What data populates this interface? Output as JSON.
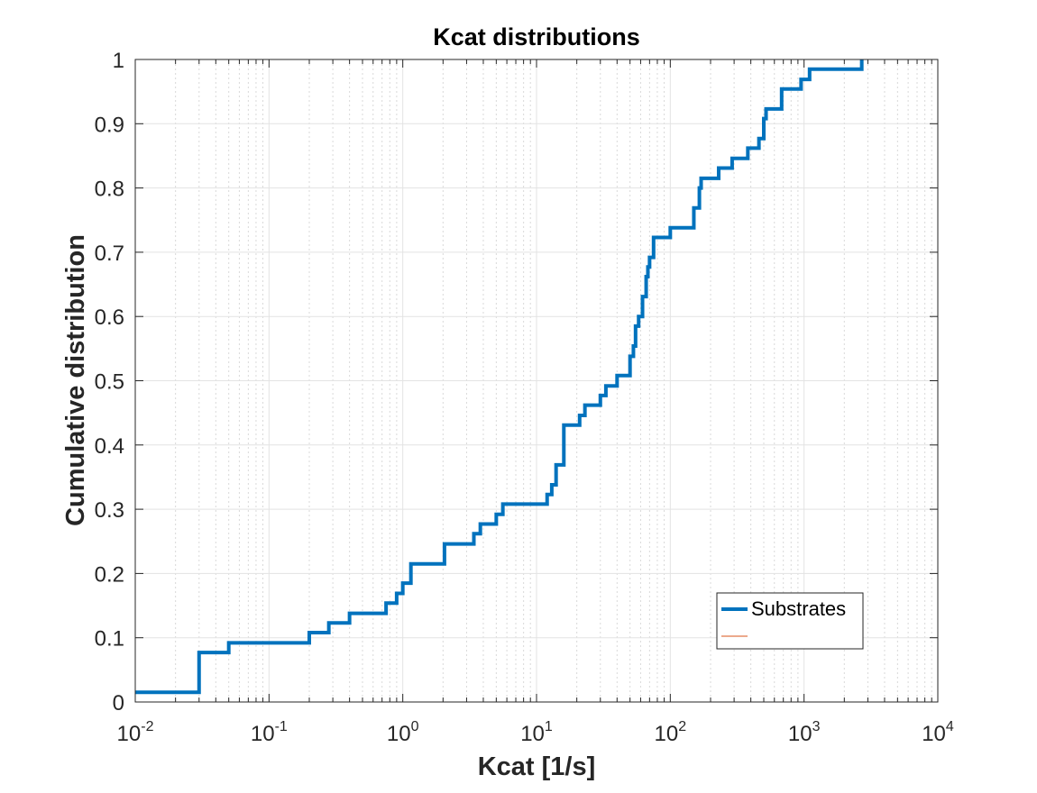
{
  "chart_data": {
    "type": "line",
    "title": "Kcat distributions",
    "xlabel": "Kcat [1/s]",
    "ylabel": "Cumulative distribution",
    "xscale": "log",
    "xlim": [
      0.01,
      10000
    ],
    "ylim": [
      0,
      1
    ],
    "grid": true,
    "minor_grid": true,
    "legend_position": "bottom-right",
    "x_tick_labels": [
      {
        "base": "10",
        "exp": "-2"
      },
      {
        "base": "10",
        "exp": "-1"
      },
      {
        "base": "10",
        "exp": "0"
      },
      {
        "base": "10",
        "exp": "1"
      },
      {
        "base": "10",
        "exp": "2"
      },
      {
        "base": "10",
        "exp": "3"
      },
      {
        "base": "10",
        "exp": "4"
      }
    ],
    "y_ticks": [
      0,
      0.1,
      0.2,
      0.3,
      0.4,
      0.5,
      0.6,
      0.7,
      0.8,
      0.9,
      1
    ],
    "y_tick_labels": [
      "0",
      "0.1",
      "0.2",
      "0.3",
      "0.4",
      "0.5",
      "0.6",
      "0.7",
      "0.8",
      "0.9",
      "1"
    ],
    "series": [
      {
        "name": "Substrates",
        "color": "#0072BD",
        "style": "stairs",
        "points": [
          [
            0.01,
            0.015
          ],
          [
            0.03,
            0.077
          ],
          [
            0.05,
            0.092
          ],
          [
            0.2,
            0.108
          ],
          [
            0.28,
            0.123
          ],
          [
            0.4,
            0.138
          ],
          [
            0.75,
            0.154
          ],
          [
            0.9,
            0.169
          ],
          [
            1.0,
            0.185
          ],
          [
            1.15,
            0.215
          ],
          [
            2.05,
            0.246
          ],
          [
            3.4,
            0.262
          ],
          [
            3.8,
            0.277
          ],
          [
            5.0,
            0.292
          ],
          [
            5.6,
            0.308
          ],
          [
            12.0,
            0.323
          ],
          [
            13.0,
            0.338
          ],
          [
            14.0,
            0.369
          ],
          [
            16.0,
            0.431
          ],
          [
            21.0,
            0.446
          ],
          [
            23.0,
            0.462
          ],
          [
            30.0,
            0.477
          ],
          [
            33.0,
            0.492
          ],
          [
            40.0,
            0.508
          ],
          [
            50.0,
            0.538
          ],
          [
            53.0,
            0.554
          ],
          [
            55.0,
            0.585
          ],
          [
            58.0,
            0.6
          ],
          [
            62.0,
            0.631
          ],
          [
            66.0,
            0.662
          ],
          [
            68.0,
            0.677
          ],
          [
            70.0,
            0.692
          ],
          [
            75.0,
            0.723
          ],
          [
            100.0,
            0.738
          ],
          [
            150.0,
            0.769
          ],
          [
            165.0,
            0.8
          ],
          [
            170.0,
            0.815
          ],
          [
            230.0,
            0.831
          ],
          [
            290.0,
            0.846
          ],
          [
            380.0,
            0.862
          ],
          [
            460.0,
            0.877
          ],
          [
            500.0,
            0.908
          ],
          [
            520.0,
            0.923
          ],
          [
            680.0,
            0.954
          ],
          [
            950.0,
            0.969
          ],
          [
            1100.0,
            0.985
          ],
          [
            2700.0,
            1.0
          ]
        ]
      },
      {
        "name": "",
        "color": "#D95319",
        "style": "line",
        "points": []
      }
    ]
  }
}
